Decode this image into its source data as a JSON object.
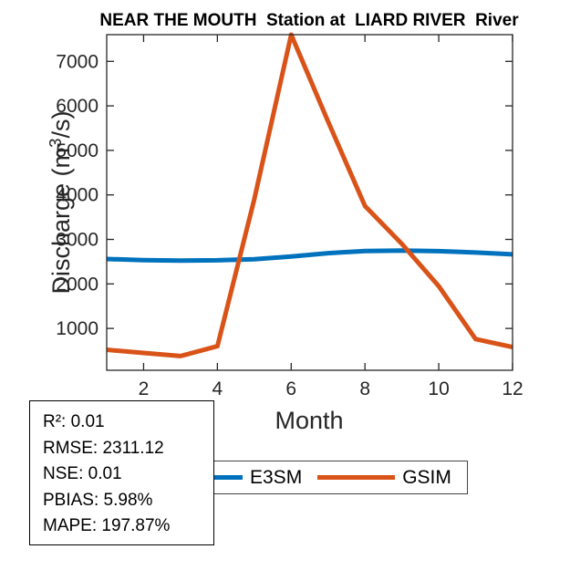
{
  "chart_data": {
    "type": "line",
    "title": "NEAR THE MOUTH  Station at  LIARD RIVER  River",
    "xlabel": "Month",
    "ylabel": "Discharge (m³/s)",
    "ylabel_parts": {
      "prefix": "Discharge (m",
      "sup": "3",
      "suffix": "/s)"
    },
    "x": [
      1,
      2,
      3,
      4,
      5,
      6,
      7,
      8,
      9,
      10,
      11,
      12
    ],
    "xticks": [
      2,
      4,
      6,
      8,
      10,
      12
    ],
    "yticks": [
      1000,
      2000,
      3000,
      4000,
      5000,
      6000,
      7000
    ],
    "xlim": [
      1,
      12
    ],
    "ylim": [
      60,
      7600
    ],
    "grid": false,
    "legend_position": "below-plot-left",
    "axis_color": "#262626",
    "series": [
      {
        "name": "E3SM",
        "color": "#0072BD",
        "values": [
          2560,
          2535,
          2525,
          2530,
          2555,
          2615,
          2690,
          2740,
          2750,
          2735,
          2705,
          2665
        ]
      },
      {
        "name": "GSIM",
        "color": "#D95319",
        "values": [
          520,
          450,
          380,
          600,
          3900,
          7600,
          5650,
          3750,
          2900,
          1950,
          760,
          580
        ]
      }
    ]
  },
  "legend": {
    "entries": [
      {
        "label": "E3SM",
        "color": "#0072BD"
      },
      {
        "label": "GSIM",
        "color": "#D95319"
      }
    ]
  },
  "stats_box": {
    "lines": [
      "R²: 0.01",
      "RMSE: 2311.12",
      "NSE: 0.01",
      "PBIAS: 5.98%",
      "MAPE: 197.87%"
    ]
  }
}
